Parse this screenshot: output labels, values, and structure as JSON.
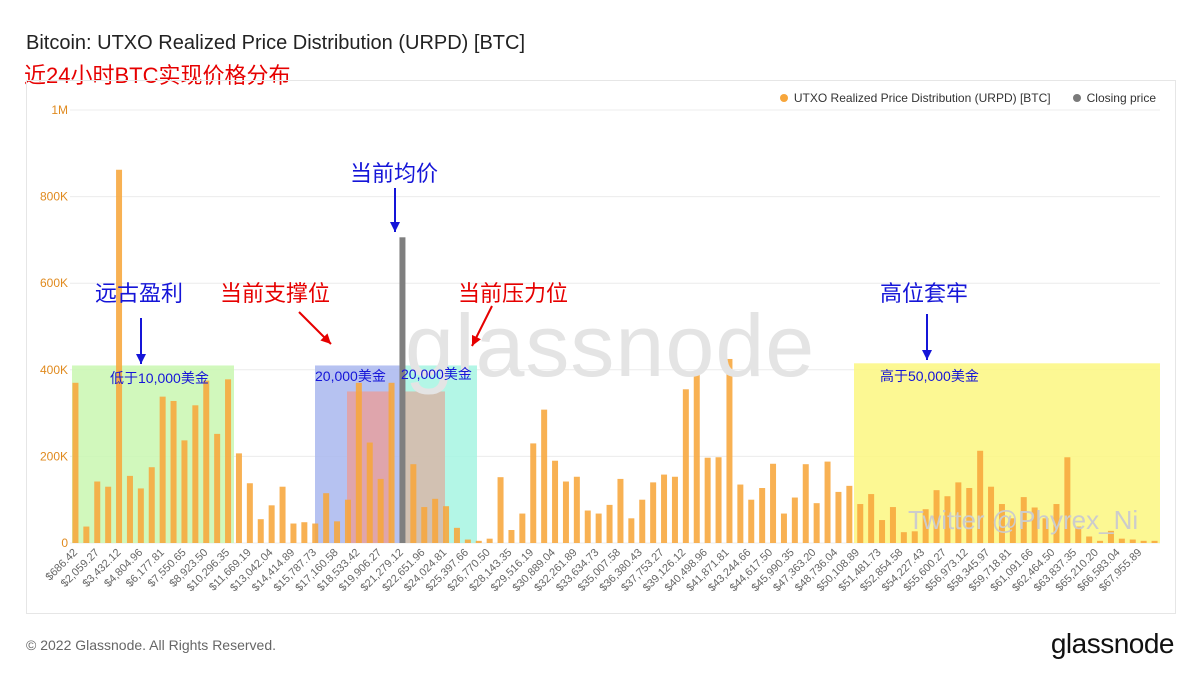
{
  "title": "Bitcoin: UTXO Realized Price Distribution (URPD) [BTC]",
  "subtitle": "近24小时BTC实现价格分布",
  "footer": "© 2022 Glassnode. All Rights Reserved.",
  "logo": "glassnode",
  "watermark": "glassnode",
  "twitter_watermark": "Twitter @Phyrex_Ni",
  "legend": [
    {
      "label": "UTXO Realized Price Distribution (URPD) [BTC]",
      "color": "#f7931a"
    },
    {
      "label": "Closing price",
      "color": "#7a7a7a"
    }
  ],
  "annotations": {
    "current_avg": "当前均价",
    "ancient_profit": "远古盈利",
    "below_10k": "低于10,000美金",
    "support": "当前支撑位",
    "resistance": "当前压力位",
    "usd20k_left": "20,000美金",
    "usd20k_right": "20,000美金",
    "high_trapped": "高位套牢",
    "above_50k": "高于50,000美金"
  },
  "colors": {
    "bar": "#f7a63b",
    "closing": "#7f7f7f",
    "green_zone": "#c9f7b0",
    "blue_zone": "#a9b7ef",
    "red_zone": "#e6a0a0",
    "cyan_zone": "#a6f5e2",
    "yellow_zone": "#fbf780",
    "arrow_red": "#e60000",
    "arrow_blue": "#1515d8"
  },
  "chart_data": {
    "type": "bar",
    "ylim": [
      0,
      1000000
    ],
    "yticks": [
      0,
      200000,
      400000,
      600000,
      800000,
      1000000
    ],
    "ytick_labels": [
      "0",
      "200K",
      "400K",
      "600K",
      "800K",
      "1M"
    ],
    "x_tick_labels": [
      "$686.42",
      "$2,059.27",
      "$3,432.12",
      "$4,804.96",
      "$6,177.81",
      "$7,550.65",
      "$8,923.50",
      "$10,296.35",
      "$11,669.19",
      "$13,042.04",
      "$14,414.89",
      "$15,787.73",
      "$17,160.58",
      "$18,533.42",
      "$19,906.27",
      "$21,279.12",
      "$22,651.96",
      "$24,024.81",
      "$25,397.66",
      "$26,770.50",
      "$28,143.35",
      "$29,516.19",
      "$30,889.04",
      "$32,261.89",
      "$33,634.73",
      "$35,007.58",
      "$36,380.43",
      "$37,753.27",
      "$39,126.12",
      "$40,498.96",
      "$41,871.81",
      "$43,244.66",
      "$44,617.50",
      "$45,990.35",
      "$47,363.20",
      "$48,736.04",
      "$50,108.89",
      "$51,481.73",
      "$52,854.58",
      "$54,227.43",
      "$55,600.27",
      "$56,973.12",
      "$58,345.97",
      "$59,718.81",
      "$61,091.66",
      "$62,464.50",
      "$63,837.35",
      "$65,210.20",
      "$66,583.04",
      "$67,955.89"
    ],
    "values": [
      370000,
      38000,
      142000,
      130000,
      862000,
      155000,
      126000,
      175000,
      338000,
      328000,
      237000,
      318000,
      375000,
      252000,
      378000,
      207000,
      138000,
      55000,
      87000,
      130000,
      45000,
      48000,
      45000,
      115000,
      50000,
      100000,
      370000,
      232000,
      148000,
      370000,
      706000,
      182000,
      83000,
      102000,
      85000,
      35000,
      8000,
      5000,
      10000,
      152000,
      30000,
      68000,
      230000,
      308000,
      190000,
      142000,
      153000,
      75000,
      68000,
      88000,
      148000,
      57000,
      100000,
      140000,
      158000,
      153000,
      355000,
      392000,
      197000,
      198000,
      425000,
      135000,
      100000,
      127000,
      183000,
      68000,
      105000,
      182000,
      92000,
      188000,
      118000,
      132000,
      90000,
      113000,
      53000,
      83000,
      25000,
      27000,
      78000,
      122000,
      108000,
      140000,
      127000,
      213000,
      130000,
      90000,
      57000,
      106000,
      82000,
      57000,
      90000,
      198000,
      38000,
      15000,
      5000,
      28000,
      10000,
      8000,
      5000,
      5000
    ],
    "closing_price_index": 30,
    "series": [
      {
        "name": "UTXO Realized Price Distribution (URPD) [BTC]"
      },
      {
        "name": "Closing price"
      }
    ]
  }
}
